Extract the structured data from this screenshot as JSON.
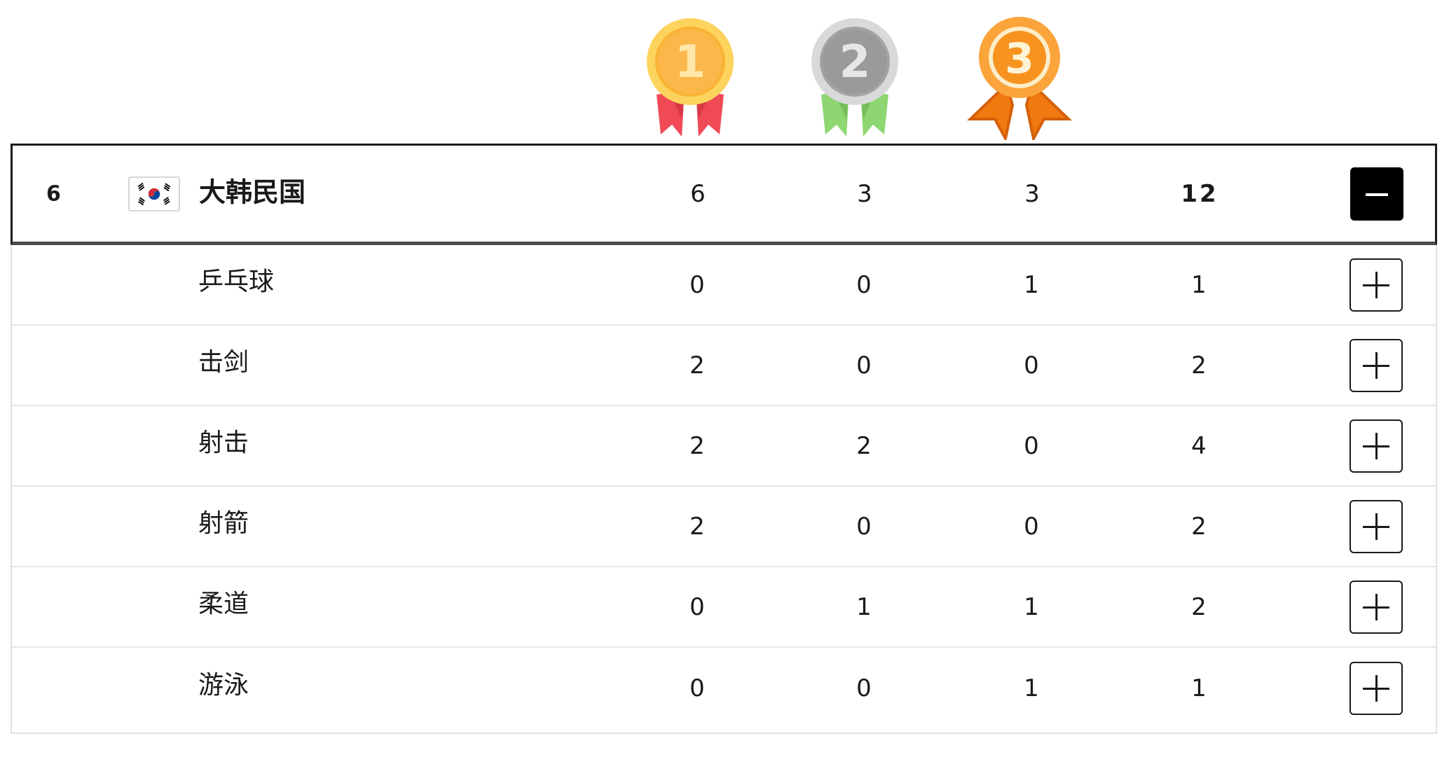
{
  "medal_icons": {
    "gold": {
      "numeral": "1",
      "color": "#F9B233",
      "ribbon": "#F04A57"
    },
    "silver": {
      "numeral": "2",
      "color": "#9A9A9A",
      "ribbon": "#8ED672"
    },
    "bronze": {
      "numeral": "3",
      "color": "#F7931E",
      "ribbon": "#F07A10"
    }
  },
  "country": {
    "rank": "6",
    "flag": "south-korea-flag-icon",
    "name": "大韩民国",
    "gold": "6",
    "silver": "3",
    "bronze": "3",
    "total": "12",
    "expanded": true
  },
  "sports": [
    {
      "name": "乒乓球",
      "gold": "0",
      "silver": "0",
      "bronze": "1",
      "total": "1"
    },
    {
      "name": "击剑",
      "gold": "2",
      "silver": "0",
      "bronze": "0",
      "total": "2"
    },
    {
      "name": "射击",
      "gold": "2",
      "silver": "2",
      "bronze": "0",
      "total": "4"
    },
    {
      "name": "射箭",
      "gold": "2",
      "silver": "0",
      "bronze": "0",
      "total": "2"
    },
    {
      "name": "柔道",
      "gold": "0",
      "silver": "1",
      "bronze": "1",
      "total": "2"
    },
    {
      "name": "游泳",
      "gold": "0",
      "silver": "0",
      "bronze": "1",
      "total": "1"
    }
  ]
}
